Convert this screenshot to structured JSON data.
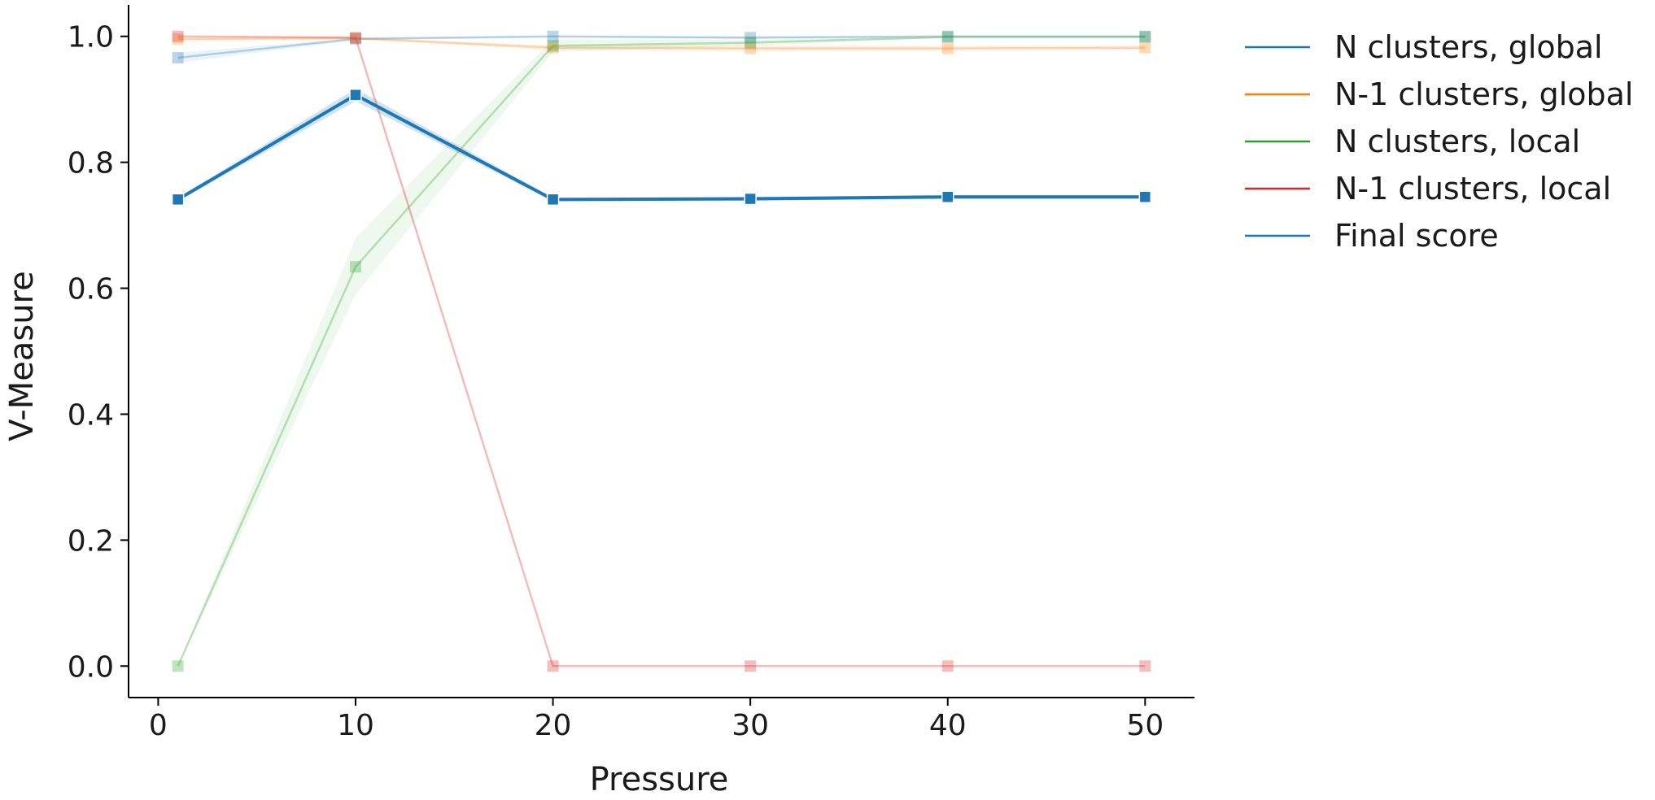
{
  "chart_data": {
    "type": "line",
    "xlabel": "Pressure",
    "ylabel": "V-Measure",
    "xlim": [
      -1.5,
      52.5
    ],
    "ylim": [
      -0.05,
      1.05
    ],
    "xticks": [
      0,
      10,
      20,
      30,
      40,
      50
    ],
    "xtick_labels": [
      "0",
      "10",
      "20",
      "30",
      "40",
      "50"
    ],
    "yticks": [
      0.0,
      0.2,
      0.4,
      0.6,
      0.8,
      1.0
    ],
    "ytick_labels": [
      "0.0",
      "0.2",
      "0.4",
      "0.6",
      "0.8",
      "1.0"
    ],
    "grid": false,
    "legend_position": "outside right, top",
    "x": [
      1,
      10,
      20,
      30,
      40,
      50
    ],
    "series": [
      {
        "name": "N clusters, global",
        "color": "#1f77b4",
        "emphasis": "faded",
        "values": [
          0.966,
          0.996,
          1.0,
          0.998,
          1.0,
          1.0
        ],
        "band_low": [
          0.958,
          0.994,
          0.998,
          0.996,
          0.999,
          0.999
        ],
        "band_high": [
          0.974,
          0.998,
          1.0,
          1.0,
          1.0,
          1.0
        ]
      },
      {
        "name": "N-1 clusters, global",
        "color": "#ff7f0e",
        "emphasis": "faded",
        "values": [
          0.996,
          0.997,
          0.982,
          0.981,
          0.981,
          0.982
        ],
        "band_low": [
          0.994,
          0.995,
          0.978,
          0.976,
          0.977,
          0.978
        ],
        "band_high": [
          0.998,
          0.999,
          0.986,
          0.986,
          0.985,
          0.986
        ]
      },
      {
        "name": "N clusters, local",
        "color": "#2ca02c",
        "emphasis": "faded",
        "values": [
          0.0,
          0.634,
          0.985,
          0.99,
          0.999,
          0.999
        ],
        "band_low": [
          0.0,
          0.59,
          0.975,
          0.985,
          0.998,
          0.998
        ],
        "band_high": [
          0.0,
          0.68,
          0.995,
          0.995,
          1.0,
          1.0
        ]
      },
      {
        "name": "N-1 clusters, local",
        "color": "#d62728",
        "emphasis": "faded",
        "values": [
          1.0,
          0.998,
          0.0,
          0.0,
          0.0,
          0.0
        ],
        "band_low": [
          1.0,
          0.996,
          0.0,
          0.0,
          0.0,
          0.0
        ],
        "band_high": [
          1.0,
          1.0,
          0.0,
          0.0,
          0.0,
          0.0
        ]
      },
      {
        "name": "Final score",
        "color": "#1f77b4",
        "emphasis": "bold",
        "values": [
          0.741,
          0.907,
          0.741,
          0.742,
          0.745,
          0.745
        ],
        "band_low": [
          0.738,
          0.897,
          0.738,
          0.739,
          0.742,
          0.742
        ],
        "band_high": [
          0.744,
          0.917,
          0.744,
          0.745,
          0.748,
          0.748
        ]
      }
    ]
  }
}
